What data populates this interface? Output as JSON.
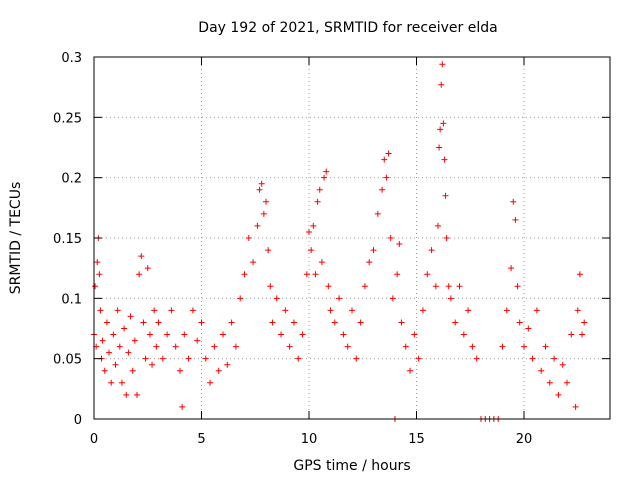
{
  "chart_data": {
    "type": "scatter",
    "title": "Day 192 of 2021, SRMTID for receiver elda",
    "xlabel": "GPS time / hours",
    "ylabel": "SRMTID / TECUs",
    "xlim": [
      0,
      24
    ],
    "ylim": [
      0,
      0.3
    ],
    "xticks": [
      0,
      5,
      10,
      15,
      20
    ],
    "yticks": [
      0,
      0.05,
      0.1,
      0.15,
      0.2,
      0.25,
      0.3
    ],
    "xtick_labels": [
      "0",
      "5",
      "10",
      "15",
      "20"
    ],
    "ytick_labels": [
      "0",
      "0.05",
      "0.1",
      "0.15",
      "0.2",
      "0.25",
      "0.3"
    ],
    "grid": true,
    "marker": "+",
    "series_color": "#ff0000",
    "series": [
      {
        "name": "SRMTID",
        "points": [
          [
            0.0,
            0.07
          ],
          [
            0.05,
            0.11
          ],
          [
            0.1,
            0.06
          ],
          [
            0.15,
            0.13
          ],
          [
            0.2,
            0.15
          ],
          [
            0.25,
            0.12
          ],
          [
            0.3,
            0.09
          ],
          [
            0.35,
            0.05
          ],
          [
            0.4,
            0.065
          ],
          [
            0.5,
            0.04
          ],
          [
            0.6,
            0.08
          ],
          [
            0.7,
            0.055
          ],
          [
            0.8,
            0.03
          ],
          [
            0.9,
            0.07
          ],
          [
            1.0,
            0.045
          ],
          [
            1.1,
            0.09
          ],
          [
            1.2,
            0.06
          ],
          [
            1.3,
            0.03
          ],
          [
            1.4,
            0.075
          ],
          [
            1.5,
            0.02
          ],
          [
            1.6,
            0.055
          ],
          [
            1.7,
            0.085
          ],
          [
            1.8,
            0.04
          ],
          [
            1.9,
            0.065
          ],
          [
            2.0,
            0.02
          ],
          [
            2.1,
            0.12
          ],
          [
            2.2,
            0.135
          ],
          [
            2.3,
            0.08
          ],
          [
            2.4,
            0.05
          ],
          [
            2.5,
            0.125
          ],
          [
            2.6,
            0.07
          ],
          [
            2.7,
            0.045
          ],
          [
            2.8,
            0.09
          ],
          [
            2.9,
            0.06
          ],
          [
            3.0,
            0.08
          ],
          [
            3.2,
            0.05
          ],
          [
            3.4,
            0.07
          ],
          [
            3.6,
            0.09
          ],
          [
            3.8,
            0.06
          ],
          [
            4.0,
            0.04
          ],
          [
            4.1,
            0.01
          ],
          [
            4.2,
            0.07
          ],
          [
            4.4,
            0.05
          ],
          [
            4.6,
            0.09
          ],
          [
            4.8,
            0.065
          ],
          [
            5.0,
            0.08
          ],
          [
            5.2,
            0.05
          ],
          [
            5.4,
            0.03
          ],
          [
            5.6,
            0.06
          ],
          [
            5.8,
            0.04
          ],
          [
            6.0,
            0.07
          ],
          [
            6.2,
            0.045
          ],
          [
            6.4,
            0.08
          ],
          [
            6.6,
            0.06
          ],
          [
            6.8,
            0.1
          ],
          [
            7.0,
            0.12
          ],
          [
            7.2,
            0.15
          ],
          [
            7.4,
            0.13
          ],
          [
            7.6,
            0.16
          ],
          [
            7.7,
            0.19
          ],
          [
            7.8,
            0.195
          ],
          [
            7.9,
            0.17
          ],
          [
            8.0,
            0.18
          ],
          [
            8.1,
            0.14
          ],
          [
            8.2,
            0.11
          ],
          [
            8.3,
            0.08
          ],
          [
            8.5,
            0.1
          ],
          [
            8.7,
            0.07
          ],
          [
            8.9,
            0.09
          ],
          [
            9.1,
            0.06
          ],
          [
            9.3,
            0.08
          ],
          [
            9.5,
            0.05
          ],
          [
            9.7,
            0.07
          ],
          [
            9.9,
            0.12
          ],
          [
            10.0,
            0.155
          ],
          [
            10.1,
            0.14
          ],
          [
            10.2,
            0.16
          ],
          [
            10.3,
            0.12
          ],
          [
            10.4,
            0.18
          ],
          [
            10.5,
            0.19
          ],
          [
            10.6,
            0.13
          ],
          [
            10.7,
            0.2
          ],
          [
            10.8,
            0.205
          ],
          [
            10.9,
            0.11
          ],
          [
            11.0,
            0.09
          ],
          [
            11.2,
            0.08
          ],
          [
            11.4,
            0.1
          ],
          [
            11.6,
            0.07
          ],
          [
            11.8,
            0.06
          ],
          [
            12.0,
            0.09
          ],
          [
            12.2,
            0.05
          ],
          [
            12.4,
            0.08
          ],
          [
            12.6,
            0.11
          ],
          [
            12.8,
            0.13
          ],
          [
            13.0,
            0.14
          ],
          [
            13.2,
            0.17
          ],
          [
            13.4,
            0.19
          ],
          [
            13.5,
            0.215
          ],
          [
            13.6,
            0.2
          ],
          [
            13.7,
            0.22
          ],
          [
            13.8,
            0.15
          ],
          [
            13.9,
            0.1
          ],
          [
            14.0,
            0.0
          ],
          [
            14.1,
            0.12
          ],
          [
            14.2,
            0.145
          ],
          [
            14.3,
            0.08
          ],
          [
            14.5,
            0.06
          ],
          [
            14.7,
            0.04
          ],
          [
            14.9,
            0.07
          ],
          [
            15.1,
            0.05
          ],
          [
            15.3,
            0.09
          ],
          [
            15.5,
            0.12
          ],
          [
            15.7,
            0.14
          ],
          [
            15.9,
            0.11
          ],
          [
            16.0,
            0.16
          ],
          [
            16.05,
            0.225
          ],
          [
            16.1,
            0.24
          ],
          [
            16.15,
            0.277
          ],
          [
            16.2,
            0.294
          ],
          [
            16.25,
            0.245
          ],
          [
            16.3,
            0.215
          ],
          [
            16.35,
            0.185
          ],
          [
            16.4,
            0.15
          ],
          [
            16.5,
            0.11
          ],
          [
            16.6,
            0.1
          ],
          [
            16.8,
            0.08
          ],
          [
            17.0,
            0.11
          ],
          [
            17.2,
            0.07
          ],
          [
            17.4,
            0.09
          ],
          [
            17.6,
            0.06
          ],
          [
            17.8,
            0.05
          ],
          [
            18.0,
            0.0
          ],
          [
            18.2,
            0.0
          ],
          [
            18.4,
            0.0
          ],
          [
            18.6,
            0.0
          ],
          [
            18.8,
            0.0
          ],
          [
            19.0,
            0.06
          ],
          [
            19.2,
            0.09
          ],
          [
            19.4,
            0.125
          ],
          [
            19.5,
            0.18
          ],
          [
            19.6,
            0.165
          ],
          [
            19.7,
            0.11
          ],
          [
            19.8,
            0.08
          ],
          [
            20.0,
            0.06
          ],
          [
            20.2,
            0.075
          ],
          [
            20.4,
            0.05
          ],
          [
            20.6,
            0.09
          ],
          [
            20.8,
            0.04
          ],
          [
            21.0,
            0.06
          ],
          [
            21.2,
            0.03
          ],
          [
            21.4,
            0.05
          ],
          [
            21.6,
            0.02
          ],
          [
            21.8,
            0.045
          ],
          [
            22.0,
            0.03
          ],
          [
            22.2,
            0.07
          ],
          [
            22.4,
            0.01
          ],
          [
            22.5,
            0.09
          ],
          [
            22.6,
            0.12
          ],
          [
            22.7,
            0.07
          ],
          [
            22.8,
            0.08
          ]
        ]
      }
    ]
  }
}
